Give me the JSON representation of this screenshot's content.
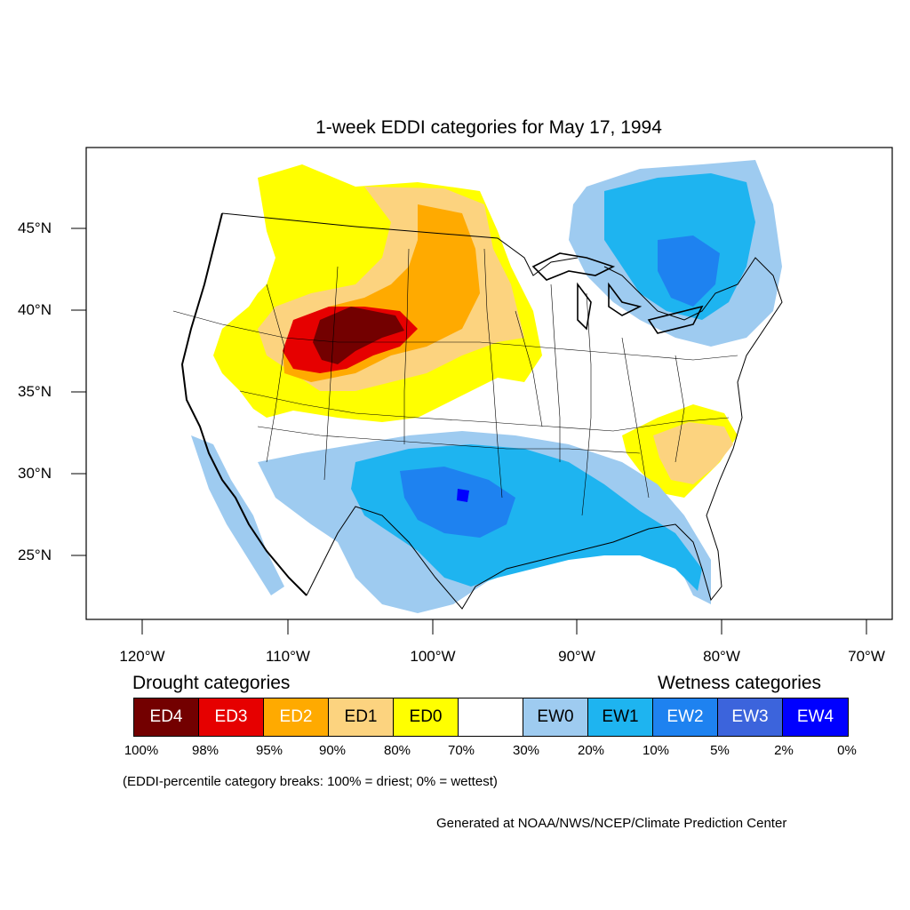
{
  "title": "1-week EDDI categories for May 17, 1994",
  "lat_labels": [
    "45°N",
    "40°N",
    "35°N",
    "30°N",
    "25°N"
  ],
  "lon_labels": [
    "120°W",
    "110°W",
    "100°W",
    "90°W",
    "80°W",
    "70°W"
  ],
  "legend": {
    "drought_heading": "Drought categories",
    "wetness_heading": "Wetness categories",
    "categories": [
      {
        "label": "ED4",
        "color": "#730000",
        "text_color": "#ffffff"
      },
      {
        "label": "ED3",
        "color": "#e60000",
        "text_color": "#ffffff"
      },
      {
        "label": "ED2",
        "color": "#ffaa00",
        "text_color": "#ffffff"
      },
      {
        "label": "ED1",
        "color": "#fcd37f",
        "text_color": "#000000"
      },
      {
        "label": "ED0",
        "color": "#ffff00",
        "text_color": "#000000"
      },
      {
        "label": "",
        "color": "#ffffff",
        "text_color": "#000000"
      },
      {
        "label": "EW0",
        "color": "#9ecbf0",
        "text_color": "#000000"
      },
      {
        "label": "EW1",
        "color": "#1eb4f0",
        "text_color": "#000000"
      },
      {
        "label": "EW2",
        "color": "#1e82f0",
        "text_color": "#ffffff"
      },
      {
        "label": "EW3",
        "color": "#3c64dc",
        "text_color": "#ffffff"
      },
      {
        "label": "EW4",
        "color": "#0000ff",
        "text_color": "#ffffff"
      }
    ],
    "percent_breaks": [
      "100%",
      "98%",
      "95%",
      "90%",
      "80%",
      "70%",
      "30%",
      "20%",
      "10%",
      "5%",
      "2%",
      "0%"
    ]
  },
  "note": "(EDDI-percentile category breaks: 100% = driest; 0% = wettest)",
  "credit": "Generated at NOAA/NWS/NCEP/Climate Prediction Center"
}
